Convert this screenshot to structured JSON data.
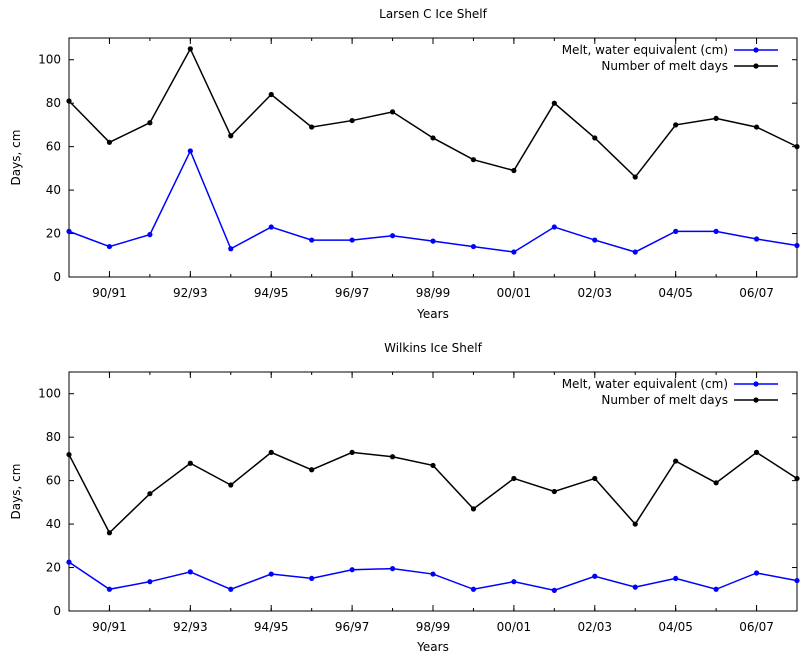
{
  "chart_data": [
    {
      "type": "line",
      "title": "Larsen C Ice Shelf",
      "xlabel": "Years",
      "ylabel": "Days, cm",
      "ylim": [
        0,
        110
      ],
      "xlim": [
        0,
        18
      ],
      "x_tick_labels": [
        "90/91",
        "92/93",
        "94/95",
        "96/97",
        "98/99",
        "00/01",
        "02/03",
        "04/05",
        "06/07"
      ],
      "y_ticks": [
        0,
        20,
        40,
        60,
        80,
        100
      ],
      "grid": false,
      "legend_position": "top-right",
      "x": [
        0,
        1,
        2,
        3,
        4,
        5,
        6,
        7,
        8,
        9,
        10,
        11,
        12,
        13,
        14,
        15,
        16,
        17,
        18
      ],
      "series": [
        {
          "name": "Melt, water equivalent (cm)",
          "color": "#0000ff",
          "values": [
            21,
            14,
            19.5,
            58,
            13,
            23,
            17,
            17,
            19,
            16.5,
            14,
            11.5,
            23,
            17,
            11.5,
            21,
            21,
            17.5,
            14.5
          ]
        },
        {
          "name": "Number of melt days",
          "color": "#000000",
          "values": [
            81,
            62,
            71,
            105,
            65,
            84,
            69,
            72,
            76,
            64,
            54,
            49,
            80,
            64,
            46,
            70,
            73,
            69,
            60
          ]
        }
      ]
    },
    {
      "type": "line",
      "title": "Wilkins Ice Shelf",
      "xlabel": "Years",
      "ylabel": "Days, cm",
      "ylim": [
        0,
        110
      ],
      "xlim": [
        0,
        18
      ],
      "x_tick_labels": [
        "90/91",
        "92/93",
        "94/95",
        "96/97",
        "98/99",
        "00/01",
        "02/03",
        "04/05",
        "06/07"
      ],
      "y_ticks": [
        0,
        20,
        40,
        60,
        80,
        100
      ],
      "grid": false,
      "legend_position": "top-right",
      "x": [
        0,
        1,
        2,
        3,
        4,
        5,
        6,
        7,
        8,
        9,
        10,
        11,
        12,
        13,
        14,
        15,
        16,
        17,
        18
      ],
      "series": [
        {
          "name": "Melt, water equivalent (cm)",
          "color": "#0000ff",
          "values": [
            22.5,
            10,
            13.5,
            18,
            10,
            17,
            15,
            19,
            19.5,
            17,
            10,
            13.5,
            9.5,
            16,
            11,
            15,
            10,
            17.5,
            14
          ]
        },
        {
          "name": "Number of melt days",
          "color": "#000000",
          "values": [
            72,
            36,
            54,
            68,
            58,
            73,
            65,
            73,
            71,
            67,
            47,
            61,
            55,
            61,
            40,
            69,
            59,
            73,
            61
          ]
        }
      ]
    }
  ]
}
